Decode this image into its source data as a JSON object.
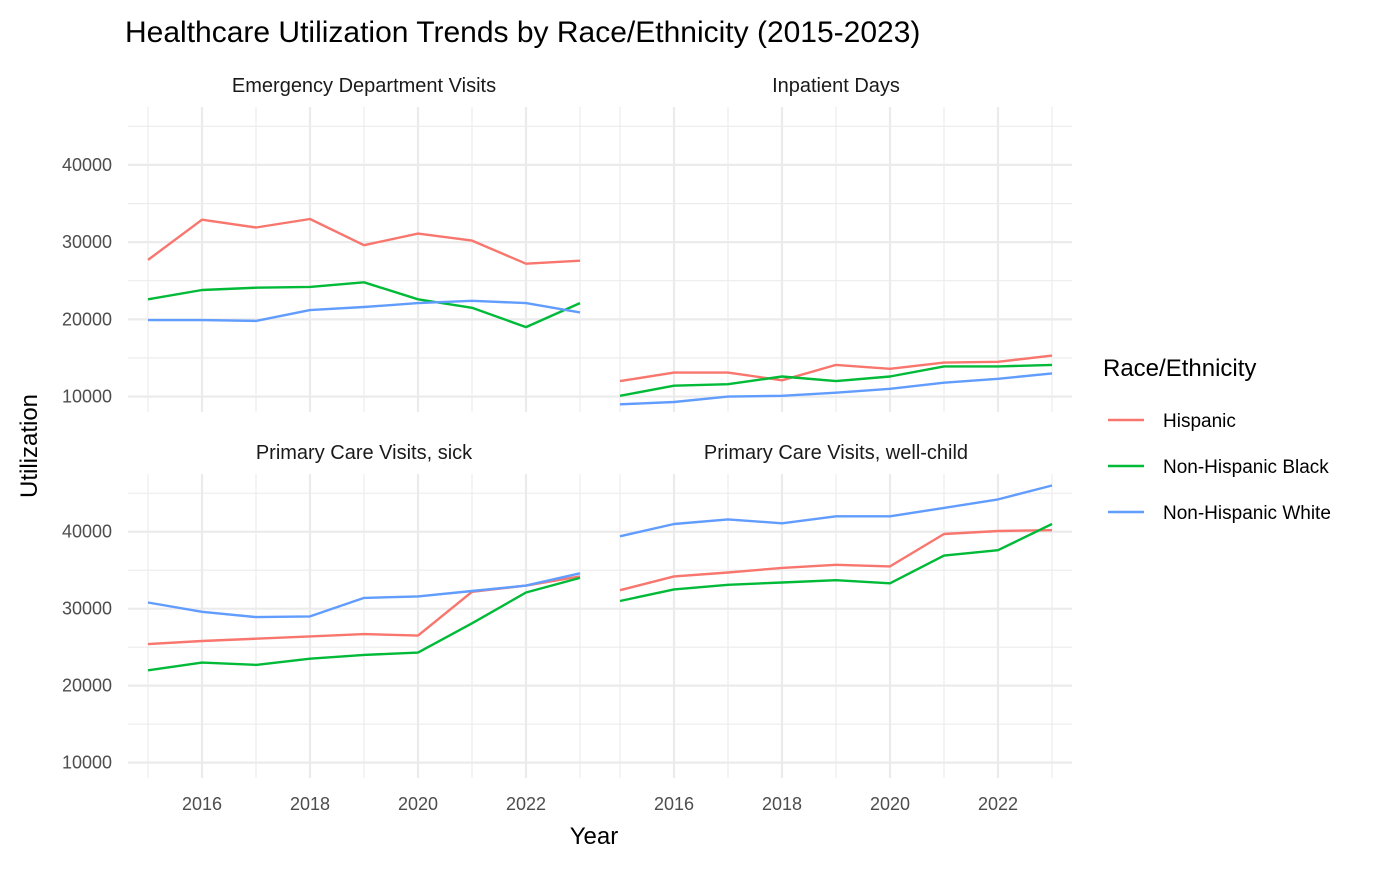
{
  "chart_data": {
    "type": "line",
    "title": "Healthcare Utilization Trends by Race/Ethnicity (2015-2023)",
    "xlabel": "Year",
    "ylabel": "Utilization",
    "x": [
      2015,
      2016,
      2017,
      2018,
      2019,
      2020,
      2021,
      2022,
      2023
    ],
    "x_ticks": [
      "2016",
      "2018",
      "2020",
      "2022"
    ],
    "y_ticks": [
      "10000",
      "20000",
      "30000",
      "40000"
    ],
    "xlim": [
      2015,
      2023
    ],
    "ylim": [
      8000,
      47500
    ],
    "grid": true,
    "legend": {
      "title": "Race/Ethnicity",
      "position": "right",
      "entries": [
        "Hispanic",
        "Non-Hispanic Black",
        "Non-Hispanic White"
      ]
    },
    "colors": {
      "Hispanic": "#F8766D",
      "Non-Hispanic Black": "#00BA38",
      "Non-Hispanic White": "#619CFF"
    },
    "panels": [
      {
        "title": "Emergency Department Visits",
        "series": [
          {
            "name": "Hispanic",
            "values": [
              27700,
              32900,
              31900,
              33000,
              29600,
              31100,
              30200,
              27200,
              27600
            ]
          },
          {
            "name": "Non-Hispanic Black",
            "values": [
              22600,
              23800,
              24100,
              24200,
              24800,
              22600,
              21500,
              19000,
              22100
            ]
          },
          {
            "name": "Non-Hispanic White",
            "values": [
              19900,
              19900,
              19800,
              21200,
              21600,
              22100,
              22400,
              22100,
              20900
            ]
          }
        ]
      },
      {
        "title": "Inpatient Days",
        "series": [
          {
            "name": "Hispanic",
            "values": [
              12000,
              13100,
              13100,
              12100,
              14100,
              13600,
              14400,
              14500,
              15300
            ]
          },
          {
            "name": "Non-Hispanic Black",
            "values": [
              10100,
              11400,
              11600,
              12600,
              12000,
              12600,
              13900,
              13900,
              14100
            ]
          },
          {
            "name": "Non-Hispanic White",
            "values": [
              9000,
              9300,
              10000,
              10100,
              10500,
              11000,
              11800,
              12300,
              13000
            ]
          }
        ]
      },
      {
        "title": "Primary Care Visits, sick",
        "series": [
          {
            "name": "Hispanic",
            "values": [
              25400,
              25800,
              26100,
              26400,
              26700,
              26500,
              32200,
              33000,
              34200
            ]
          },
          {
            "name": "Non-Hispanic Black",
            "values": [
              22000,
              23000,
              22700,
              23500,
              24000,
              24300,
              28100,
              32100,
              34000
            ]
          },
          {
            "name": "Non-Hispanic White",
            "values": [
              30800,
              29600,
              28900,
              29000,
              31400,
              31600,
              32300,
              33000,
              34600
            ]
          }
        ]
      },
      {
        "title": "Primary Care Visits, well-child",
        "series": [
          {
            "name": "Hispanic",
            "values": [
              32400,
              34200,
              34700,
              35300,
              35700,
              35500,
              39700,
              40100,
              40200
            ]
          },
          {
            "name": "Non-Hispanic Black",
            "values": [
              31000,
              32500,
              33100,
              33400,
              33700,
              33300,
              36900,
              37600,
              41000
            ]
          },
          {
            "name": "Non-Hispanic White",
            "values": [
              39400,
              41000,
              41600,
              41100,
              42000,
              42000,
              43100,
              44200,
              46000
            ]
          }
        ]
      }
    ]
  }
}
